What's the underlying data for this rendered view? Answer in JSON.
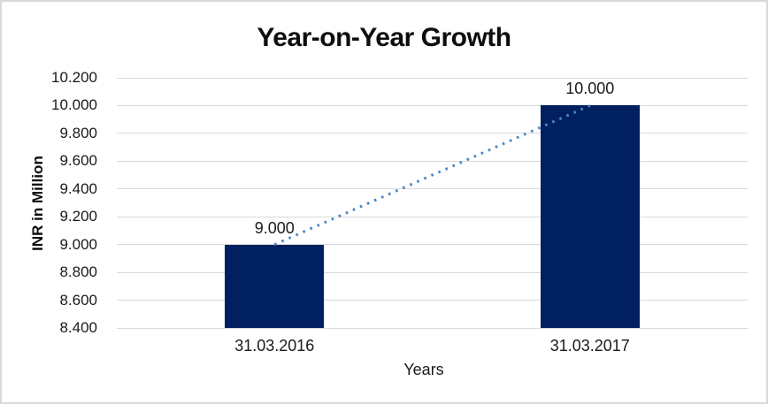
{
  "chart_data": {
    "type": "bar",
    "title": "Year-on-Year Growth",
    "xlabel": "Years",
    "ylabel": "INR in Million",
    "categories": [
      "31.03.2016",
      "31.03.2017"
    ],
    "values": [
      9000,
      10000
    ],
    "data_labels": [
      "9.000",
      "10.000"
    ],
    "y_ticks": [
      {
        "label": "10.200",
        "value": 10200
      },
      {
        "label": "10.000",
        "value": 10000
      },
      {
        "label": "9.800",
        "value": 9800
      },
      {
        "label": "9.600",
        "value": 9600
      },
      {
        "label": "9.400",
        "value": 9400
      },
      {
        "label": "9.200",
        "value": 9200
      },
      {
        "label": "9.000",
        "value": 9000
      },
      {
        "label": "8.800",
        "value": 8800
      },
      {
        "label": "8.600",
        "value": 8600
      },
      {
        "label": "8.400",
        "value": 8400
      }
    ],
    "ylim": [
      8400,
      10200
    ],
    "grid": true,
    "legend": false,
    "trendline": {
      "style": "dotted",
      "from": {
        "category": "31.03.2016",
        "value": 9000
      },
      "to": {
        "category": "31.03.2017",
        "value": 10000
      }
    },
    "colors": {
      "bar": "#002060",
      "trendline": "#4a86c8",
      "gridline": "#d9d9d9",
      "text": "#1a1a1a",
      "title_text": "#0d0d0d",
      "background": "#ffffff",
      "border": "#d9d9d9"
    }
  }
}
